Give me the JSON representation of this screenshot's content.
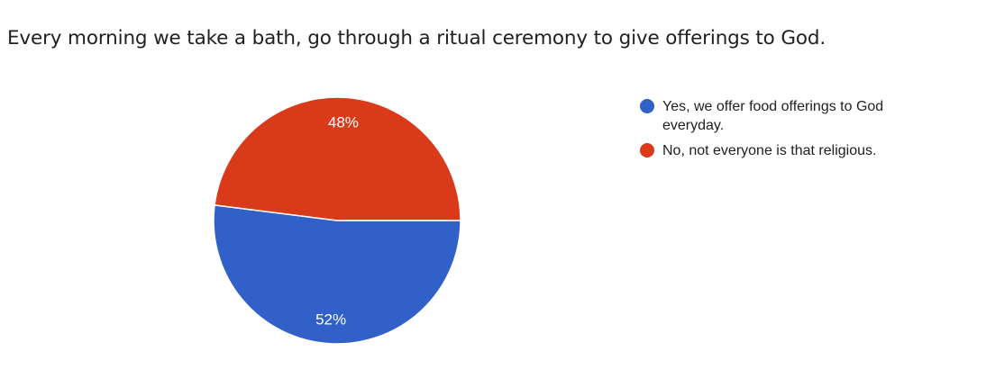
{
  "question": {
    "title": "Every morning we take a bath, go through a ritual ceremony to give offerings to God."
  },
  "chart_data": {
    "type": "pie",
    "title": "Every morning we take a bath, go through a ritual ceremony to give offerings to God.",
    "legend_position": "right",
    "slices": [
      {
        "label": "Yes, we offer food offerings to God everyday.",
        "value": 52,
        "percent_label": "52%",
        "color": "#3160c9"
      },
      {
        "label": "No, not everyone is that religious.",
        "value": 48,
        "percent_label": "48%",
        "color": "#d93a1a"
      }
    ]
  }
}
